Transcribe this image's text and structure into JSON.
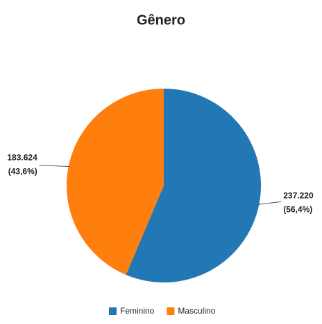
{
  "chart_data": {
    "type": "pie",
    "title": "Gênero",
    "categories": [
      "Feminino",
      "Masculino"
    ],
    "values": [
      237220,
      183624
    ],
    "value_labels": [
      "237.220",
      "183.624"
    ],
    "percents": [
      56.4,
      43.6
    ],
    "percent_labels": [
      "(56,4%)",
      "(43,6%)"
    ],
    "colors": [
      "#2277b5",
      "#ff7f0e"
    ],
    "legend": "bottom"
  }
}
